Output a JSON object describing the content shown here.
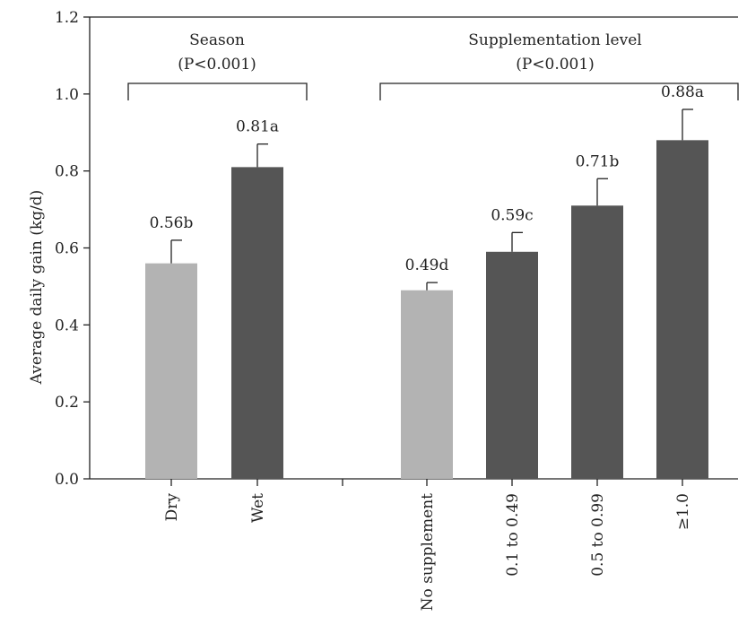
{
  "chart_data": {
    "type": "bar",
    "ylabel": "Average daily gain (kg/d)",
    "ylim": [
      0,
      1.2
    ],
    "yticks": [
      "0.0",
      "0.2",
      "0.4",
      "0.6",
      "0.8",
      "1.0",
      "1.2"
    ],
    "grid": false,
    "groups": [
      {
        "title": "Season",
        "stat": "(P<0.001)",
        "categories": [
          "Dry",
          "Wet"
        ],
        "values": [
          0.56,
          0.81
        ],
        "errors": [
          0.06,
          0.06
        ],
        "labels": [
          "0.56b",
          "0.81a"
        ]
      },
      {
        "title": "Supplementation level",
        "stat": "(P<0.001)",
        "categories": [
          "No supplement",
          "0.1 to 0.49",
          "0.5 to 0.99",
          "≥1.0"
        ],
        "values": [
          0.49,
          0.59,
          0.71,
          0.88
        ],
        "errors": [
          0.02,
          0.05,
          0.07,
          0.08
        ],
        "labels": [
          "0.49d",
          "0.59c",
          "0.71b",
          "0.88a"
        ]
      }
    ]
  },
  "colors": {
    "light_bar": "#b3b3b3",
    "dark_bar": "#555555",
    "axis": "#222222"
  }
}
